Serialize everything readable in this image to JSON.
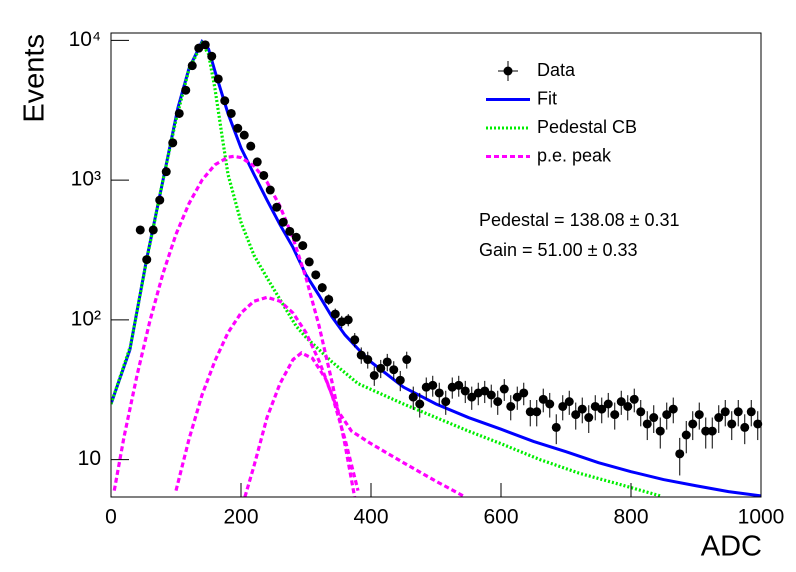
{
  "chart_data": {
    "type": "scatter",
    "xlabel": "ADC",
    "ylabel": "Events",
    "xlim": [
      0,
      1000
    ],
    "xticks": [
      0,
      200,
      400,
      600,
      800,
      1000
    ],
    "ylim": [
      5.4,
      11300
    ],
    "yticks": [
      10,
      {
        "value": 100,
        "label": "10²"
      },
      {
        "value": 1000,
        "label": "10³"
      },
      {
        "value": 10000,
        "label": "10⁴"
      }
    ],
    "log_y": true,
    "grid": false,
    "legend": "upper right",
    "annotations": [
      "Pedestal = 138.08 ± 0.31",
      "Gain = 51.00 ± 0.33"
    ],
    "series": [
      {
        "name": "Data",
        "type": "errorbar",
        "color": "#000000",
        "x": [
          45,
          55,
          65,
          75,
          85,
          95,
          105,
          115,
          125,
          135,
          145,
          155,
          165,
          175,
          185,
          195,
          205,
          215,
          225,
          235,
          245,
          255,
          265,
          275,
          285,
          295,
          305,
          315,
          325,
          335,
          345,
          355,
          365,
          375,
          385,
          395,
          405,
          415,
          425,
          435,
          445,
          455,
          465,
          475,
          485,
          495,
          505,
          515,
          525,
          535,
          545,
          555,
          565,
          575,
          585,
          595,
          605,
          615,
          625,
          635,
          645,
          655,
          665,
          675,
          685,
          695,
          705,
          715,
          725,
          735,
          745,
          755,
          765,
          775,
          785,
          795,
          805,
          815,
          825,
          835,
          845,
          855,
          865,
          875,
          885,
          895,
          905,
          915,
          925,
          935,
          945,
          955,
          965,
          975,
          985,
          995
        ],
        "values": [
          440,
          270,
          440,
          720,
          1150,
          1850,
          3000,
          4400,
          6600,
          8800,
          9300,
          7700,
          5300,
          3700,
          3000,
          2350,
          2100,
          1750,
          1350,
          1080,
          850,
          640,
          500,
          430,
          390,
          340,
          260,
          210,
          170,
          140,
          110,
          97,
          100,
          72,
          56,
          52,
          40,
          45,
          50,
          44,
          37,
          52,
          28,
          25,
          33,
          34,
          30,
          26,
          33,
          34,
          31,
          28,
          30,
          31,
          29,
          26,
          32,
          24,
          28,
          30,
          22,
          22,
          27,
          25,
          17,
          24,
          26,
          21,
          23,
          20,
          24,
          23,
          25,
          21,
          26,
          24,
          27,
          22,
          18,
          20,
          16,
          21,
          23,
          11,
          15,
          18,
          21,
          16,
          16,
          20,
          22,
          18,
          22,
          17,
          22,
          18
        ],
        "errors": [
          21,
          16,
          21,
          27,
          34,
          43,
          55,
          66,
          81,
          94,
          96,
          88,
          73,
          61,
          55,
          48,
          46,
          42,
          37,
          33,
          29,
          25,
          22,
          21,
          20,
          18,
          16,
          14.5,
          13,
          12,
          10.5,
          9.8,
          10,
          8.5,
          7.5,
          7.2,
          6.3,
          6.7,
          7.1,
          6.6,
          6.1,
          7.2,
          5.3,
          5,
          5.7,
          5.8,
          5.5,
          5.1,
          5.7,
          5.8,
          5.6,
          5.3,
          5.5,
          5.6,
          5.4,
          5.1,
          5.7,
          4.9,
          5.3,
          5.5,
          4.7,
          4.7,
          5.2,
          5,
          4.1,
          4.9,
          5.1,
          4.6,
          4.8,
          4.5,
          4.9,
          4.8,
          5,
          4.6,
          5.1,
          4.9,
          5.2,
          4.7,
          4.2,
          4.5,
          4,
          4.6,
          4.8,
          3.3,
          3.9,
          4.2,
          4.6,
          4,
          4,
          4.5,
          4.7,
          4.2,
          4.7,
          4.1,
          4.7,
          4.2
        ]
      },
      {
        "name": "Fit",
        "type": "line",
        "color": "#0000ff",
        "style": "solid",
        "x": [
          0,
          29,
          55,
          80,
          103,
          120,
          140,
          150,
          160,
          180,
          200,
          220,
          240,
          260,
          280,
          300,
          320,
          340,
          360,
          380,
          400,
          450,
          500,
          550,
          600,
          650,
          700,
          750,
          800,
          850,
          900,
          950,
          1000
        ],
        "values": [
          25,
          61,
          275,
          1000,
          3300,
          6300,
          9800,
          8700,
          6000,
          3000,
          1700,
          1100,
          720,
          480,
          330,
          210,
          150,
          105,
          78,
          62,
          50,
          33,
          25,
          20,
          16.5,
          13.5,
          11.4,
          9.5,
          8.2,
          7.2,
          6.5,
          5.9,
          5.5
        ]
      },
      {
        "name": "Pedestal CB",
        "type": "line",
        "color": "#00ee00",
        "style": "dotted",
        "x": [
          0,
          30,
          55,
          80,
          100,
          120,
          140,
          150,
          160,
          170,
          180,
          200,
          220,
          240,
          260,
          285,
          300,
          340,
          380,
          450,
          500,
          550,
          600,
          660,
          720,
          780,
          845
        ],
        "values": [
          25,
          65,
          270,
          1000,
          2700,
          6200,
          9500,
          8000,
          4500,
          2200,
          1100,
          500,
          290,
          200,
          140,
          90,
          75,
          50,
          35,
          25,
          20,
          16,
          13,
          10,
          8,
          6.7,
          5.5
        ]
      },
      {
        "name": "p.e. peak",
        "type": "line",
        "color": "#ff00ff",
        "style": "dashed",
        "x": [
          5,
          20,
          40,
          60,
          80,
          100,
          120,
          140,
          160,
          180,
          189,
          200,
          220,
          240,
          260,
          280,
          300,
          320,
          340,
          360,
          380,
          null,
          100,
          120,
          140,
          160,
          180,
          200,
          220,
          240,
          260,
          280,
          300,
          320,
          340,
          360,
          380,
          null,
          206,
          220,
          240,
          260,
          280,
          293,
          310,
          330,
          350,
          370,
          400,
          450,
          500,
          545
        ],
        "values": [
          6,
          14.5,
          40,
          99,
          215,
          410,
          680,
          1000,
          1290,
          1460,
          1480,
          1450,
          1265,
          970,
          650,
          385,
          200,
          91,
          36,
          12.8,
          4,
          null,
          6,
          14,
          29,
          51,
          81,
          112,
          136,
          145,
          136,
          112,
          81,
          51,
          29,
          14,
          6,
          null,
          5.4,
          9,
          20,
          35,
          52,
          58,
          53,
          38,
          22,
          16,
          13,
          9.5,
          7,
          5.4
        ]
      }
    ]
  }
}
